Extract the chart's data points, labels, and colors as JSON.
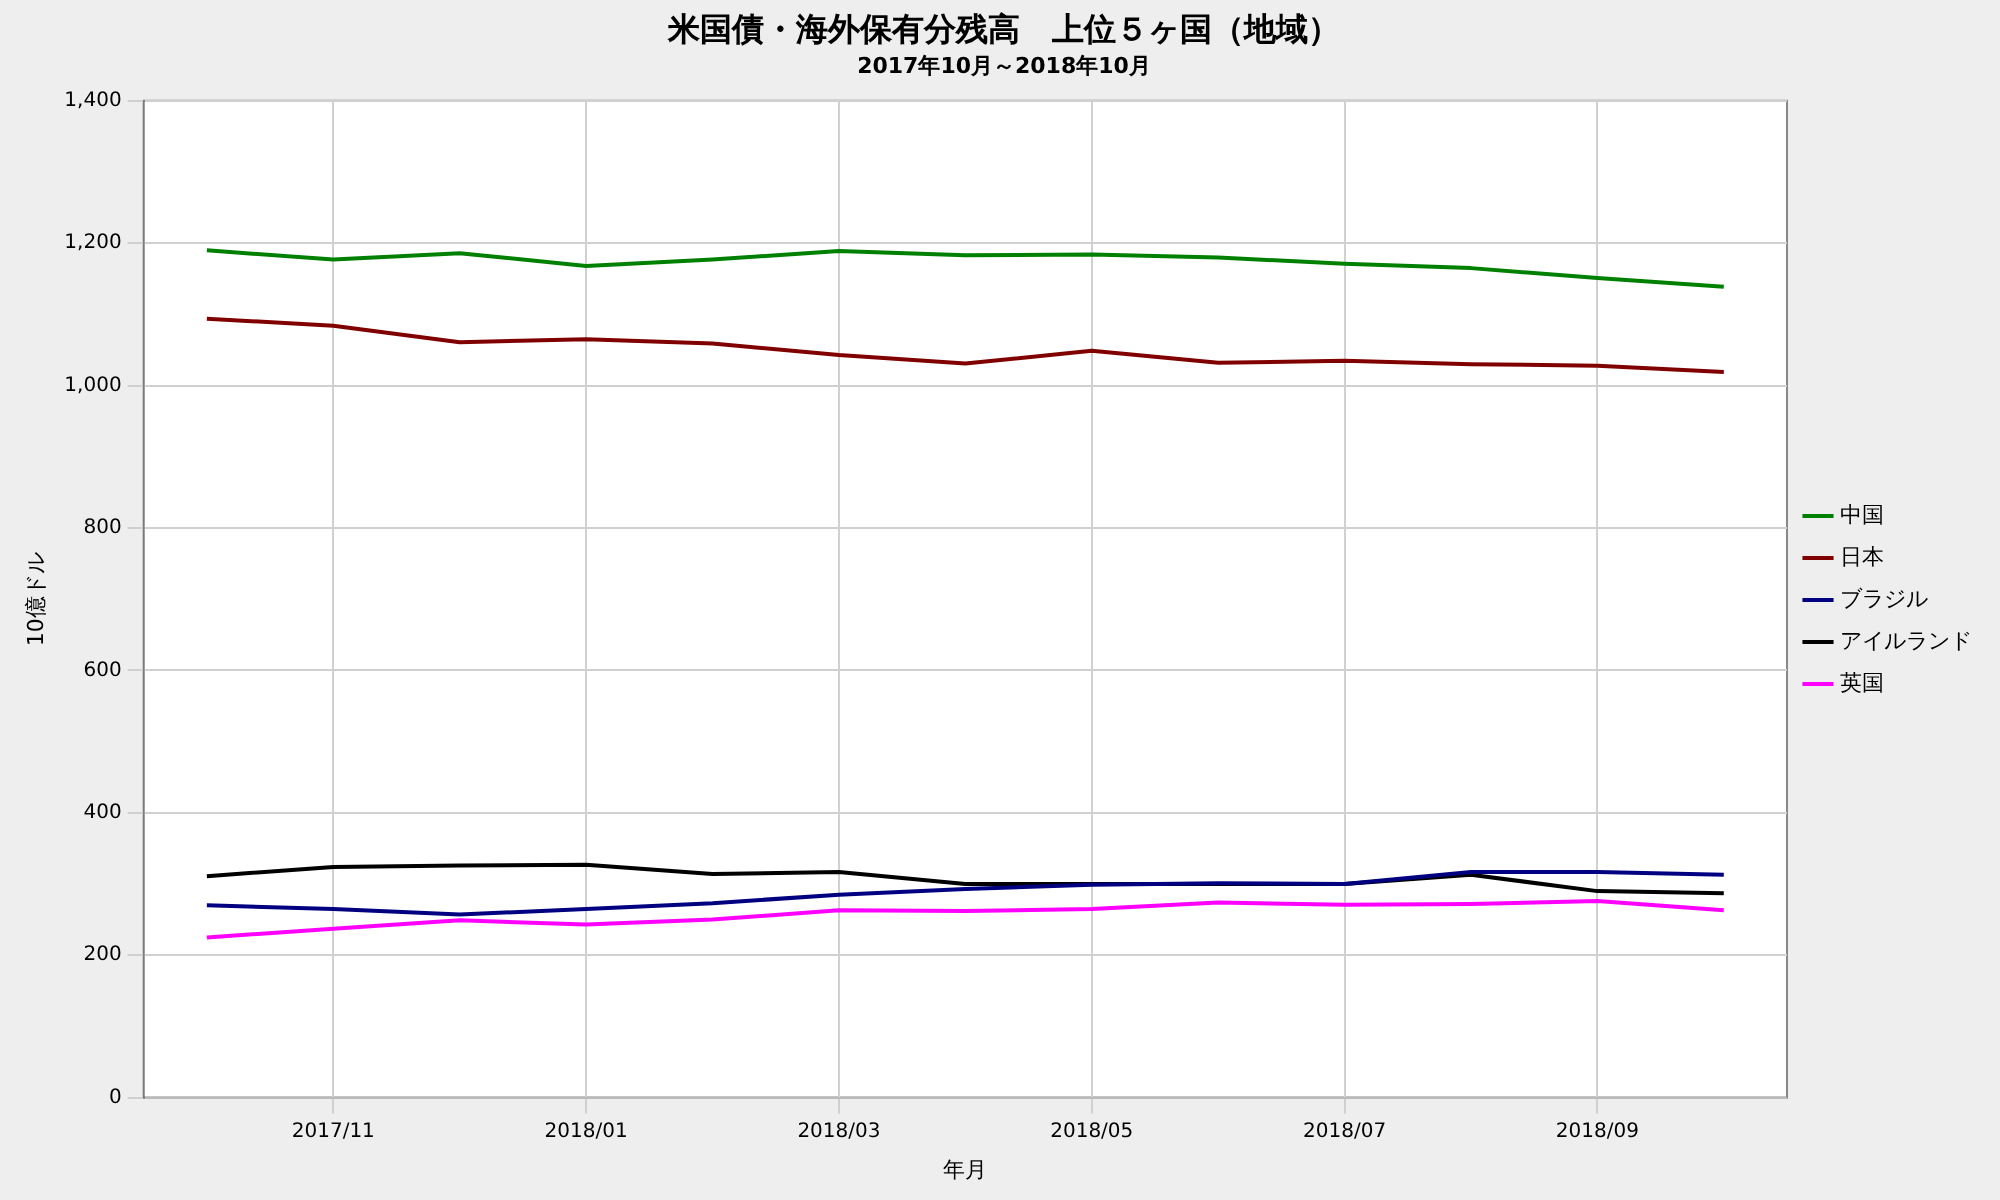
{
  "chart_data": {
    "type": "line",
    "title": "米国債・海外保有分残高　上位５ヶ国（地域）",
    "subtitle": "2017年10月～2018年10月",
    "xlabel": "年月",
    "ylabel": "10億ドル",
    "categories": [
      null,
      "2017/11",
      null,
      "2018/01",
      null,
      "2018/03",
      null,
      "2018/05",
      null,
      "2018/07",
      null,
      "2018/09",
      null
    ],
    "series": [
      {
        "name": "中国",
        "color": "#008000",
        "values": [
          1190,
          1177,
          1186,
          1168,
          1177,
          1189,
          1183,
          1184,
          1180,
          1171,
          1165,
          1151,
          1139
        ]
      },
      {
        "name": "日本",
        "color": "#800000",
        "values": [
          1094,
          1084,
          1061,
          1065,
          1059,
          1043,
          1031,
          1049,
          1032,
          1035,
          1030,
          1028,
          1019
        ]
      },
      {
        "name": "ブラジル",
        "color": "#000080",
        "values": [
          270,
          265,
          257,
          265,
          273,
          285,
          293,
          299,
          301,
          300,
          317,
          317,
          313
        ]
      },
      {
        "name": "アイルランド",
        "color": "#000000",
        "values": [
          311,
          324,
          326,
          327,
          314,
          317,
          300,
          300,
          300,
          300,
          313,
          290,
          287
        ]
      },
      {
        "name": "英国",
        "color": "#ff00ff",
        "values": [
          225,
          237,
          249,
          243,
          250,
          263,
          262,
          265,
          274,
          271,
          272,
          276,
          263
        ]
      }
    ],
    "ylim": [
      0,
      1400
    ],
    "yticks": [
      {
        "value": 0,
        "label": "0"
      },
      {
        "value": 200,
        "label": "200"
      },
      {
        "value": 400,
        "label": "400"
      },
      {
        "value": 600,
        "label": "600"
      },
      {
        "value": 800,
        "label": "800"
      },
      {
        "value": 1000,
        "label": "1,000"
      },
      {
        "value": 1200,
        "label": "1,200"
      },
      {
        "value": 1400,
        "label": "1,400"
      }
    ],
    "grid": true,
    "legend": "right",
    "marker": "none",
    "line_style": "solid"
  }
}
